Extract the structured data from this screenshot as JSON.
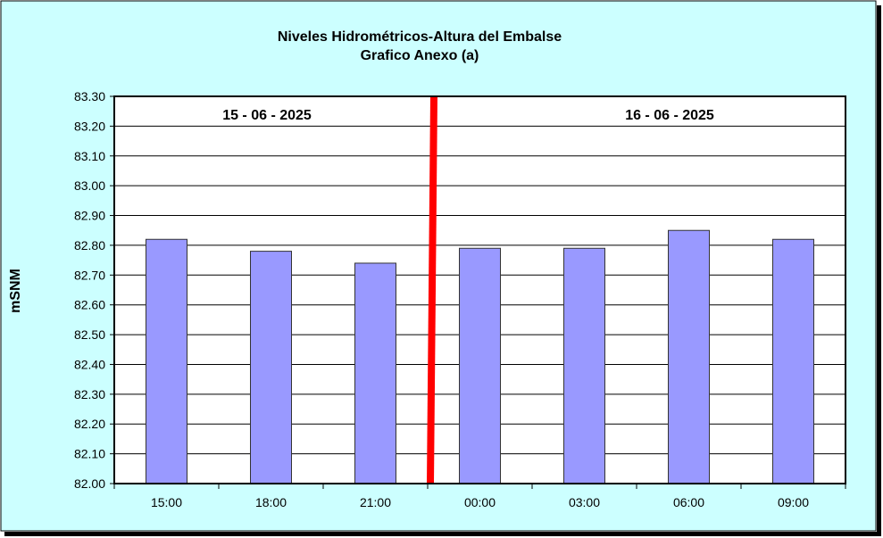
{
  "chart_data": {
    "type": "bar",
    "title": "Niveles Hidrométricos-Altura del Embalse",
    "subtitle": "Grafico Anexo (a)",
    "ylabel": "mSNM",
    "xlabel": "",
    "ylim": [
      82.0,
      83.3
    ],
    "ytick_step": 0.1,
    "grid": true,
    "categories": [
      "15:00",
      "18:00",
      "21:00",
      "00:00",
      "03:00",
      "06:00",
      "09:00"
    ],
    "values": [
      82.82,
      82.78,
      82.74,
      82.79,
      82.79,
      82.85,
      82.82
    ],
    "annotations": [
      {
        "text": "15 - 06 - 2025"
      },
      {
        "text": "16 - 06 - 2025"
      }
    ],
    "day_separator": "between 21:00 and 00:00",
    "colors": {
      "background": "#CCFFFF",
      "plot_background": "#FFFFFF",
      "bar": "#9999FF",
      "separator": "#FF0000"
    }
  }
}
